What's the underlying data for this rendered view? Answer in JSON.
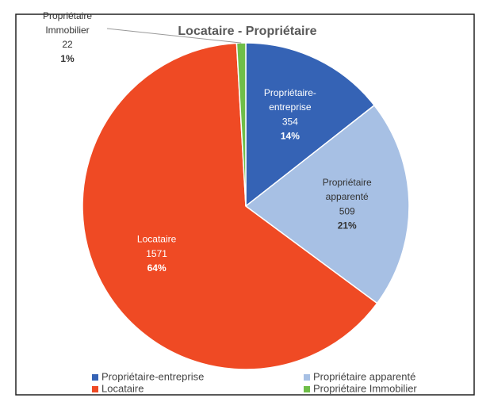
{
  "chart_data": {
    "type": "pie",
    "title": "Locataire - Propriétaire",
    "categories": [
      "Propriétaire-entreprise",
      "Propriétaire apparenté",
      "Locataire",
      "Propriétaire Immobilier"
    ],
    "values": [
      354,
      509,
      1571,
      22
    ],
    "percent_labels": [
      "14%",
      "21%",
      "64%",
      "1%"
    ],
    "colors": [
      "#3563b5",
      "#a7c0e4",
      "#ef4a24",
      "#6fbe48"
    ],
    "legend": "bottom"
  }
}
